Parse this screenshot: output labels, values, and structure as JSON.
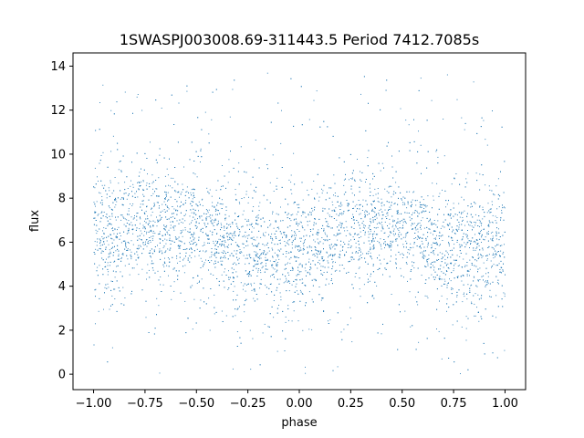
{
  "chart_data": {
    "type": "scatter",
    "title": "1SWASPJ003008.69-311443.5 Period 7412.7085s",
    "xlabel": "phase",
    "ylabel": "flux",
    "xlim": [
      -1.1,
      1.1
    ],
    "ylim": [
      -0.7,
      14.6
    ],
    "x_ticks": [
      -1.0,
      -0.75,
      -0.5,
      -0.25,
      0.0,
      0.25,
      0.5,
      0.75,
      1.0
    ],
    "x_tick_labels": [
      "−1.00",
      "−0.75",
      "−0.50",
      "−0.25",
      "0.00",
      "0.25",
      "0.50",
      "0.75",
      "1.00"
    ],
    "y_ticks": [
      0,
      2,
      4,
      6,
      8,
      10,
      12,
      14
    ],
    "y_tick_labels": [
      "0",
      "2",
      "4",
      "6",
      "8",
      "10",
      "12",
      "14"
    ],
    "grid": false,
    "point_color": "#1f77b4",
    "series": [
      {
        "description_points": [
          {
            "phase": -1.0,
            "flux_center": 6.2,
            "flux_spread": 1.3
          },
          {
            "phase": -0.75,
            "flux_center": 6.8,
            "flux_spread": 1.2
          },
          {
            "phase": -0.5,
            "flux_center": 6.6,
            "flux_spread": 1.2
          },
          {
            "phase": -0.25,
            "flux_center": 5.6,
            "flux_spread": 1.3
          },
          {
            "phase": 0.0,
            "flux_center": 5.6,
            "flux_spread": 1.3
          },
          {
            "phase": 0.25,
            "flux_center": 6.8,
            "flux_spread": 1.2
          },
          {
            "phase": 0.5,
            "flux_center": 6.6,
            "flux_spread": 1.2
          },
          {
            "phase": 0.75,
            "flux_center": 5.6,
            "flux_spread": 1.3
          },
          {
            "phase": 1.0,
            "flux_center": 5.8,
            "flux_spread": 1.3
          }
        ],
        "phase_range": [
          -1.0,
          1.0
        ],
        "flux_range": [
          0.0,
          13.8
        ]
      }
    ]
  }
}
